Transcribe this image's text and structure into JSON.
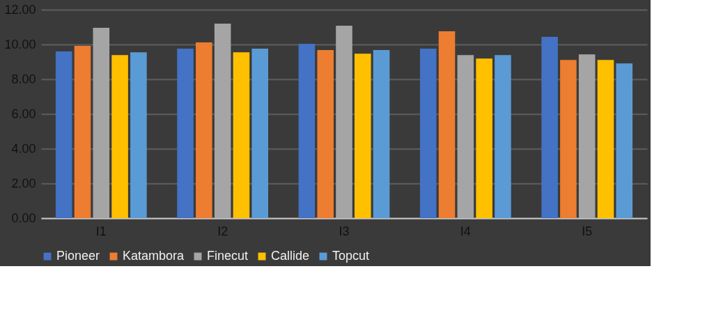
{
  "chart_data": {
    "type": "bar",
    "categories": [
      "I1",
      "I2",
      "I3",
      "I4",
      "I5"
    ],
    "series": [
      {
        "name": "Pioneer",
        "color": "#4472c4",
        "values": [
          9.6,
          9.76,
          10.04,
          9.76,
          10.44
        ]
      },
      {
        "name": "Katambora",
        "color": "#ed7d31",
        "values": [
          9.92,
          10.12,
          9.68,
          10.76,
          9.11
        ]
      },
      {
        "name": "Finecut",
        "color": "#a5a5a5",
        "values": [
          10.96,
          11.2,
          11.08,
          9.39,
          9.43
        ]
      },
      {
        "name": "Callide",
        "color": "#ffc000",
        "values": [
          9.39,
          9.55,
          9.47,
          9.19,
          9.11
        ]
      },
      {
        "name": "Topcut",
        "color": "#5b9bd5",
        "values": [
          9.55,
          9.76,
          9.68,
          9.39,
          8.91
        ]
      }
    ],
    "ylim": [
      0,
      12
    ],
    "yticks": [
      {
        "value": 0,
        "label": "0.00"
      },
      {
        "value": 2,
        "label": "2.00"
      },
      {
        "value": 4,
        "label": "4.00"
      },
      {
        "value": 6,
        "label": "6.00"
      },
      {
        "value": 8,
        "label": "8.00"
      },
      {
        "value": 10,
        "label": "10.00"
      },
      {
        "value": 12,
        "label": "12.00"
      }
    ],
    "grid": "y",
    "legend": "bottom"
  }
}
